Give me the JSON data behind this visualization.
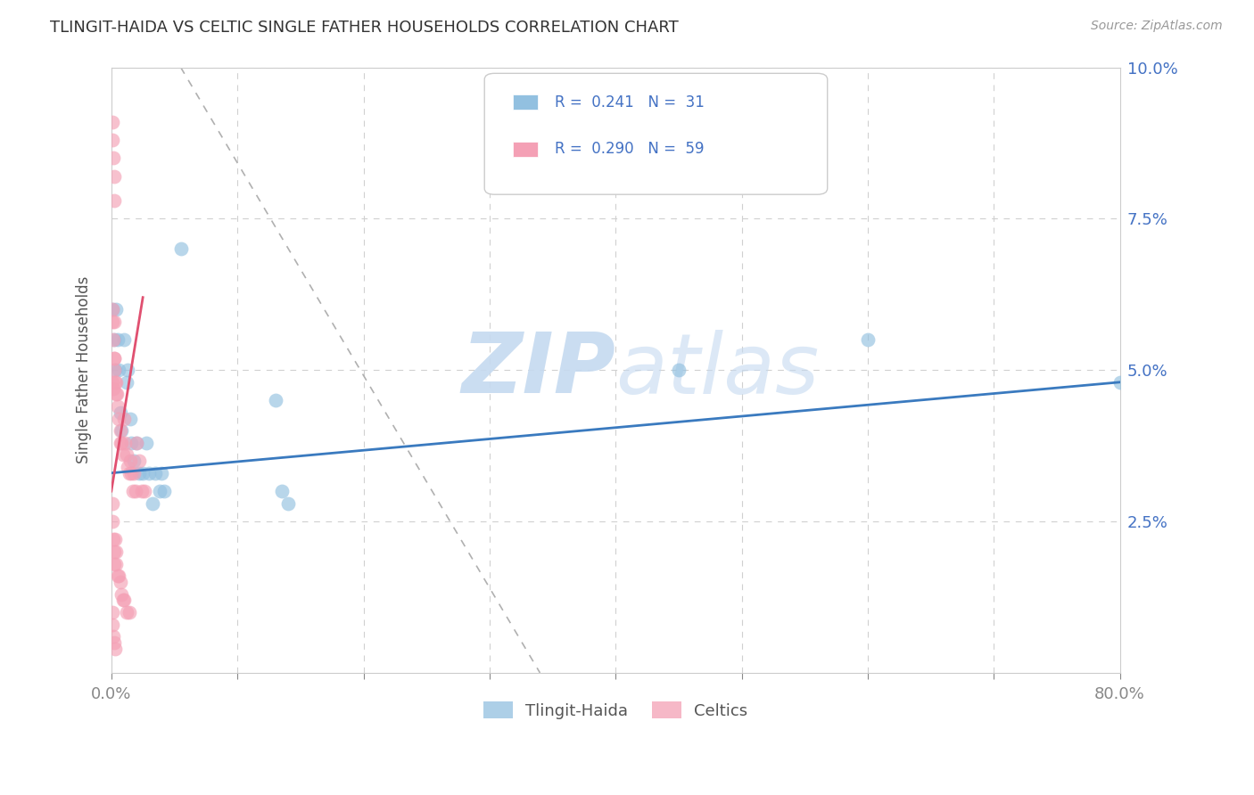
{
  "title": "TLINGIT-HAIDA VS CELTIC SINGLE FATHER HOUSEHOLDS CORRELATION CHART",
  "source": "Source: ZipAtlas.com",
  "ylabel_label": "Single Father Households",
  "watermark_zip": "ZIP",
  "watermark_atlas": "atlas",
  "blue_color": "#92c0e0",
  "pink_color": "#f4a0b5",
  "blue_line_color": "#3a7abf",
  "pink_line_color": "#e05070",
  "tlingit_haida_points": [
    [
      0.001,
      0.06
    ],
    [
      0.002,
      0.055
    ],
    [
      0.003,
      0.05
    ],
    [
      0.004,
      0.06
    ],
    [
      0.005,
      0.055
    ],
    [
      0.006,
      0.05
    ],
    [
      0.007,
      0.043
    ],
    [
      0.008,
      0.04
    ],
    [
      0.01,
      0.055
    ],
    [
      0.012,
      0.048
    ],
    [
      0.013,
      0.05
    ],
    [
      0.015,
      0.042
    ],
    [
      0.016,
      0.038
    ],
    [
      0.018,
      0.035
    ],
    [
      0.02,
      0.038
    ],
    [
      0.022,
      0.033
    ],
    [
      0.025,
      0.033
    ],
    [
      0.028,
      0.038
    ],
    [
      0.03,
      0.033
    ],
    [
      0.033,
      0.028
    ],
    [
      0.035,
      0.033
    ],
    [
      0.038,
      0.03
    ],
    [
      0.04,
      0.033
    ],
    [
      0.042,
      0.03
    ],
    [
      0.055,
      0.07
    ],
    [
      0.13,
      0.045
    ],
    [
      0.135,
      0.03
    ],
    [
      0.14,
      0.028
    ],
    [
      0.45,
      0.05
    ],
    [
      0.6,
      0.055
    ],
    [
      0.8,
      0.048
    ]
  ],
  "celtics_points": [
    [
      0.0005,
      0.088
    ],
    [
      0.001,
      0.091
    ],
    [
      0.0015,
      0.085
    ],
    [
      0.002,
      0.082
    ],
    [
      0.0025,
      0.078
    ],
    [
      0.0008,
      0.058
    ],
    [
      0.001,
      0.06
    ],
    [
      0.0015,
      0.055
    ],
    [
      0.002,
      0.052
    ],
    [
      0.0025,
      0.05
    ],
    [
      0.001,
      0.048
    ],
    [
      0.0015,
      0.047
    ],
    [
      0.002,
      0.058
    ],
    [
      0.0025,
      0.052
    ],
    [
      0.003,
      0.048
    ],
    [
      0.0035,
      0.046
    ],
    [
      0.004,
      0.048
    ],
    [
      0.0045,
      0.046
    ],
    [
      0.005,
      0.044
    ],
    [
      0.006,
      0.042
    ],
    [
      0.007,
      0.04
    ],
    [
      0.0075,
      0.038
    ],
    [
      0.008,
      0.038
    ],
    [
      0.009,
      0.036
    ],
    [
      0.01,
      0.042
    ],
    [
      0.011,
      0.038
    ],
    [
      0.012,
      0.036
    ],
    [
      0.013,
      0.034
    ],
    [
      0.014,
      0.033
    ],
    [
      0.015,
      0.035
    ],
    [
      0.016,
      0.033
    ],
    [
      0.017,
      0.03
    ],
    [
      0.018,
      0.033
    ],
    [
      0.019,
      0.03
    ],
    [
      0.02,
      0.038
    ],
    [
      0.022,
      0.035
    ],
    [
      0.024,
      0.03
    ],
    [
      0.026,
      0.03
    ],
    [
      0.0005,
      0.028
    ],
    [
      0.001,
      0.025
    ],
    [
      0.0015,
      0.022
    ],
    [
      0.002,
      0.02
    ],
    [
      0.0025,
      0.018
    ],
    [
      0.003,
      0.022
    ],
    [
      0.0035,
      0.02
    ],
    [
      0.004,
      0.018
    ],
    [
      0.005,
      0.016
    ],
    [
      0.006,
      0.016
    ],
    [
      0.007,
      0.015
    ],
    [
      0.008,
      0.013
    ],
    [
      0.009,
      0.012
    ],
    [
      0.01,
      0.012
    ],
    [
      0.012,
      0.01
    ],
    [
      0.014,
      0.01
    ],
    [
      0.0005,
      0.01
    ],
    [
      0.001,
      0.008
    ],
    [
      0.0015,
      0.006
    ],
    [
      0.002,
      0.005
    ],
    [
      0.003,
      0.004
    ]
  ],
  "blue_line_x": [
    0.0,
    0.8
  ],
  "blue_line_y": [
    0.033,
    0.048
  ],
  "pink_line_x": [
    0.0,
    0.025
  ],
  "pink_line_y": [
    0.03,
    0.062
  ],
  "dash_line_x": [
    0.055,
    0.34
  ],
  "dash_line_y": [
    0.1,
    0.0
  ],
  "xmin": 0.0,
  "xmax": 0.8,
  "ymin": 0.0,
  "ymax": 0.1
}
